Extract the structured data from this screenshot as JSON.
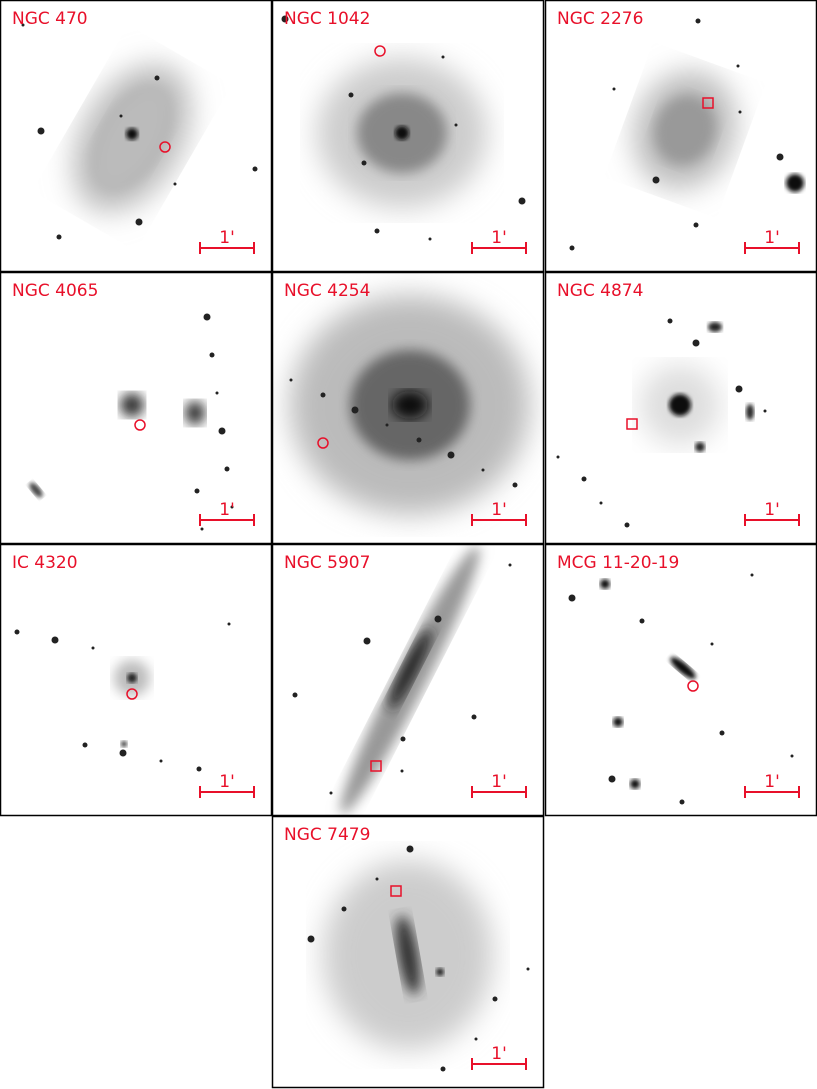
{
  "panels": [
    {
      "label": "NGC 470",
      "marker": "circle",
      "scale_label": "1'"
    },
    {
      "label": "NGC 1042",
      "marker": "circle",
      "scale_label": "1'"
    },
    {
      "label": "NGC 2276",
      "marker": "square",
      "scale_label": "1'"
    },
    {
      "label": "NGC 4065",
      "marker": "circle",
      "scale_label": "1'"
    },
    {
      "label": "NGC 4254",
      "marker": "circle",
      "scale_label": "1'"
    },
    {
      "label": "NGC 4874",
      "marker": "square",
      "scale_label": "1'"
    },
    {
      "label": "IC 4320",
      "marker": "circle",
      "scale_label": "1'"
    },
    {
      "label": "NGC 5907",
      "marker": "square",
      "scale_label": "1'"
    },
    {
      "label": "MCG 11-20-19",
      "marker": "circle",
      "scale_label": "1'"
    },
    {
      "label": "NGC 7479",
      "marker": "square",
      "scale_label": "1'"
    }
  ]
}
